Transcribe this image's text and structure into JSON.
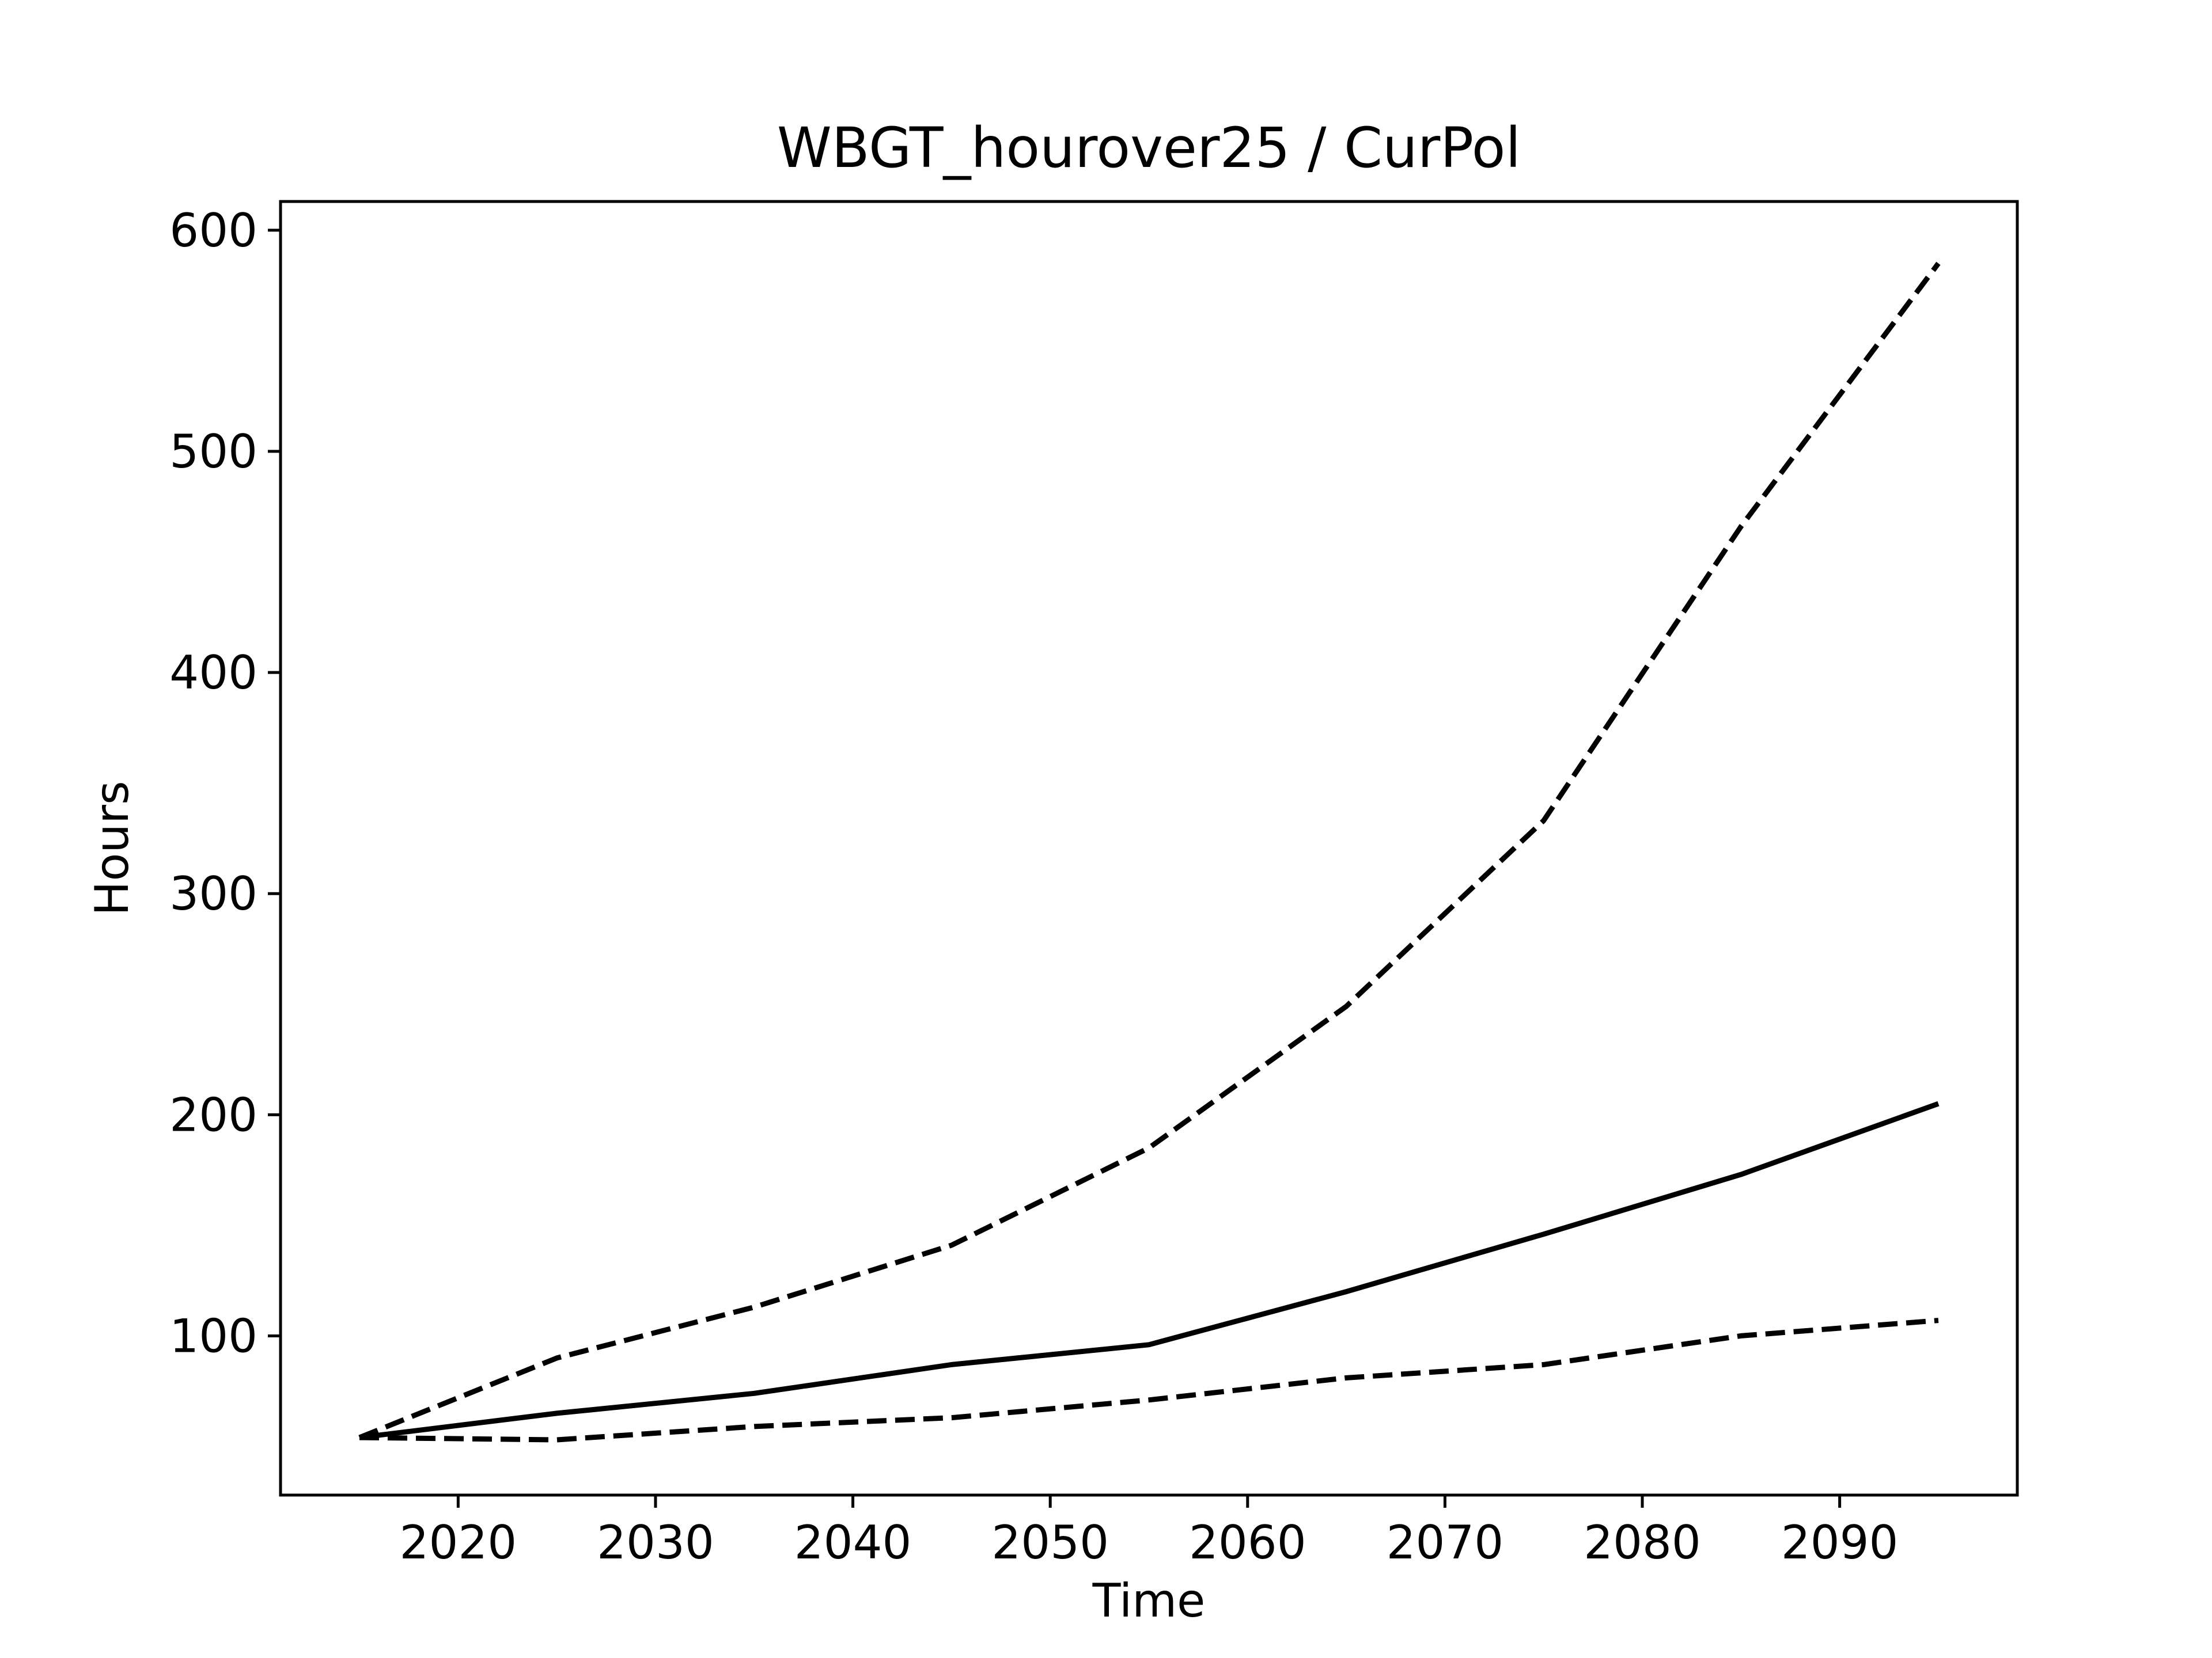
{
  "chart_data": {
    "type": "line",
    "title": "WBGT_hourover25 / CurPol",
    "xlabel": "Time",
    "ylabel": "Hours",
    "xlim": [
      2011,
      2099
    ],
    "ylim": [
      28,
      613
    ],
    "xticks": [
      2020,
      2030,
      2040,
      2050,
      2060,
      2070,
      2080,
      2090
    ],
    "yticks": [
      100,
      200,
      300,
      400,
      500,
      600
    ],
    "grid": false,
    "legend": "none",
    "line_color": "#000000",
    "x": [
      2015,
      2025,
      2035,
      2045,
      2055,
      2065,
      2075,
      2085,
      2095
    ],
    "series": [
      {
        "style": "dashed",
        "values": [
          54,
          90,
          113,
          141,
          185,
          249,
          333,
          466,
          585
        ]
      },
      {
        "style": "solid",
        "values": [
          54,
          65,
          74,
          87,
          96,
          120,
          146,
          173,
          205
        ]
      },
      {
        "style": "dashed",
        "values": [
          54,
          53,
          59,
          63,
          71,
          81,
          87,
          100,
          107
        ]
      }
    ]
  }
}
